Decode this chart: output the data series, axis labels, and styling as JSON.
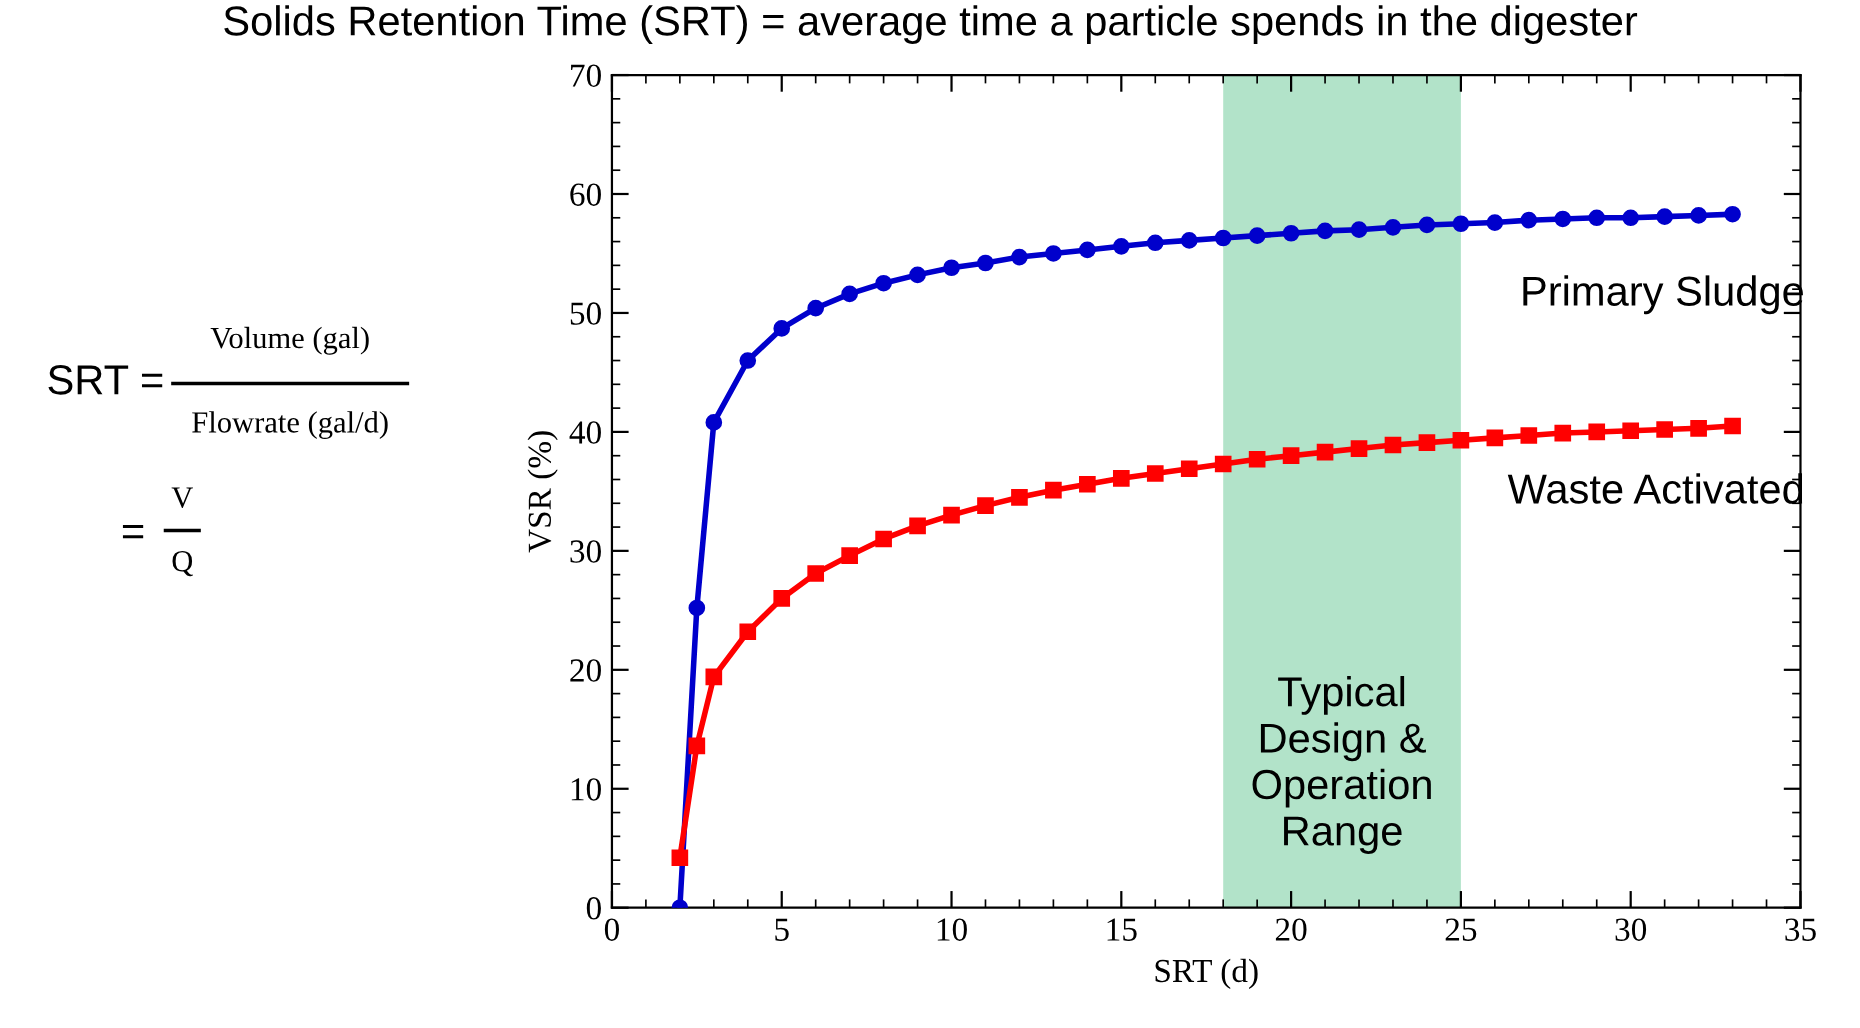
{
  "chart_data": {
    "type": "line",
    "title": "Solids Retention Time (SRT) = average time a particle spends in the digester",
    "xlabel": "SRT (d)",
    "ylabel": "VSR (%)",
    "xlim": [
      0,
      35
    ],
    "xticks": [
      0,
      5,
      10,
      15,
      20,
      25,
      30,
      35
    ],
    "ylim": [
      0,
      70
    ],
    "yticks": [
      0,
      10,
      20,
      30,
      40,
      50,
      60,
      70
    ],
    "grid": false,
    "line_style": "solid",
    "series": [
      {
        "name": "Primary Sludge",
        "color": "#0000cc",
        "marker": "circle",
        "x": [
          2,
          2.5,
          3,
          4,
          5,
          6,
          7,
          8,
          9,
          10,
          11,
          12,
          13,
          14,
          15,
          16,
          17,
          18,
          19,
          20,
          21,
          22,
          23,
          24,
          25,
          26,
          27,
          28,
          29,
          30,
          31,
          32,
          33
        ],
        "values": [
          0,
          25.2,
          40.8,
          46,
          48.7,
          50.4,
          51.6,
          52.5,
          53.2,
          53.8,
          54.2,
          54.7,
          55,
          55.3,
          55.6,
          55.9,
          56.1,
          56.3,
          56.5,
          56.7,
          56.9,
          57,
          57.2,
          57.4,
          57.5,
          57.6,
          57.8,
          57.9,
          58,
          58,
          58.1,
          58.2,
          58.3
        ]
      },
      {
        "name": "Waste Activated",
        "color": "#ff0000",
        "marker": "square",
        "x": [
          2,
          2.5,
          3,
          4,
          5,
          6,
          7,
          8,
          9,
          10,
          11,
          12,
          13,
          14,
          15,
          16,
          17,
          18,
          19,
          20,
          21,
          22,
          23,
          24,
          25,
          26,
          27,
          28,
          29,
          30,
          31,
          32,
          33
        ],
        "values": [
          4.2,
          13.6,
          19.4,
          23.2,
          26,
          28.1,
          29.6,
          31,
          32.1,
          33,
          33.8,
          34.5,
          35.1,
          35.6,
          36.1,
          36.5,
          36.9,
          37.3,
          37.7,
          38,
          38.3,
          38.6,
          38.9,
          39.1,
          39.3,
          39.5,
          39.7,
          39.9,
          40,
          40.1,
          40.2,
          40.3,
          40.5
        ]
      }
    ],
    "bands": [
      {
        "axis": "x",
        "from": 18,
        "to": 25,
        "label": "Typical\nDesign &\nOperation\nRange",
        "color": "#9fdcbc"
      }
    ],
    "annotations": [
      "SRT =",
      "Volume (gal)",
      "Flowrate (gal/d)",
      "=",
      "V",
      "Q"
    ]
  }
}
